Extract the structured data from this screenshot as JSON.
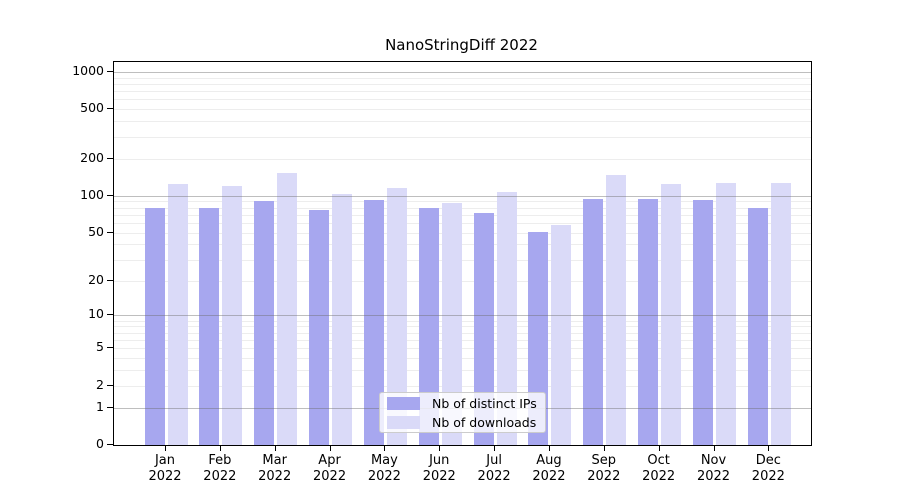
{
  "title": "NanoStringDiff 2022",
  "chart_data": {
    "type": "bar",
    "title": "NanoStringDiff 2022",
    "categories": [
      "Jan",
      "Feb",
      "Mar",
      "Apr",
      "May",
      "Jun",
      "Jul",
      "Aug",
      "Sep",
      "Oct",
      "Nov",
      "Dec"
    ],
    "year": "2022",
    "series": [
      {
        "name": "Nb of distinct IPs",
        "color": "#a7a7ef",
        "values": [
          80,
          80,
          91,
          77,
          93,
          79,
          73,
          51,
          94,
          94,
          93,
          80
        ]
      },
      {
        "name": "Nb of downloads",
        "color": "#dadaf8",
        "values": [
          125,
          120,
          152,
          103,
          116,
          88,
          107,
          58,
          146,
          125,
          128,
          127
        ]
      }
    ],
    "xlabel": "",
    "ylabel": "",
    "yscale": "log10(1+x)",
    "yticks": [
      0,
      1,
      2,
      5,
      10,
      20,
      50,
      100,
      200,
      500,
      1000
    ],
    "major_gridlines": [
      1,
      10,
      100,
      1000
    ],
    "ylim": [
      0,
      1200
    ],
    "grid": true,
    "legend_position": "lower center"
  }
}
